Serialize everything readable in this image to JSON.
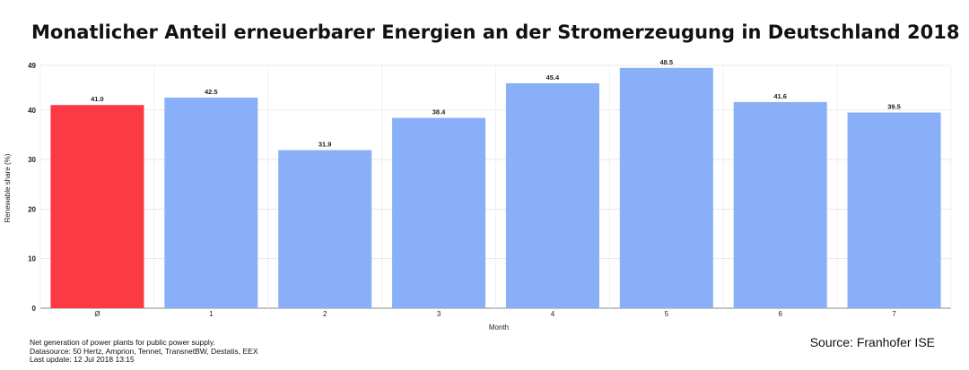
{
  "title": "Monatlicher Anteil erneuerbarer Energien an der Stromerzeugung in Deutschland 2018",
  "footnote": {
    "line1": "Net generation of power plants for public power supply.",
    "line2": "Datasource: 50 Hertz, Amprion, Tennet, TransnetBW, Destatis, EEX",
    "line3": "Last update: 12 Jul 2018 13:15"
  },
  "source": "Source: Franhofer ISE",
  "chart_data": {
    "type": "bar",
    "title": "Monatlicher Anteil erneuerbarer Energien an der Stromerzeugung in Deutschland 2018",
    "xlabel": "Month",
    "ylabel": "Renewable share (%)",
    "categories": [
      "Ø",
      "1",
      "2",
      "3",
      "4",
      "5",
      "6",
      "7"
    ],
    "values": [
      41.0,
      42.5,
      31.9,
      38.4,
      45.4,
      48.5,
      41.6,
      39.5
    ],
    "data_labels": [
      "41.0",
      "42.5",
      "31.9",
      "38.4",
      "45.4",
      "48.5",
      "41.6",
      "39.5"
    ],
    "bar_colors": [
      "#fb3a44",
      "#8aaff9",
      "#8aaff9",
      "#8aaff9",
      "#8aaff9",
      "#8aaff9",
      "#8aaff9",
      "#8aaff9"
    ],
    "ylim": [
      0,
      49
    ],
    "yticks": [
      0,
      10,
      20,
      30,
      40,
      49
    ],
    "grid": true,
    "legend": "none"
  }
}
